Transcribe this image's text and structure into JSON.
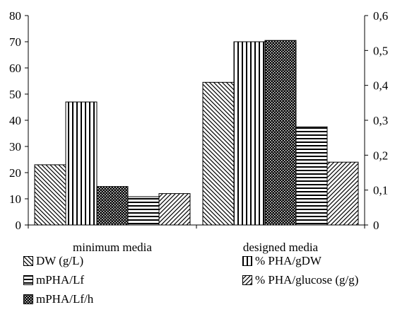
{
  "chart_data": {
    "type": "bar",
    "categories": [
      "minimum media",
      "designed media"
    ],
    "y_left": {
      "min": 0,
      "max": 80,
      "ticks": [
        0,
        10,
        20,
        30,
        40,
        50,
        60,
        70,
        80
      ]
    },
    "y_right": {
      "min": 0,
      "max": 0.6,
      "ticks": [
        "0",
        "0,1",
        "0,2",
        "0,3",
        "0,4",
        "0,5",
        "0,6"
      ]
    },
    "series": [
      {
        "name": "DW (g/L)",
        "axis": "left",
        "values": [
          23,
          54.5
        ],
        "pattern": "diag-back"
      },
      {
        "name": "% PHA/gDW",
        "axis": "left",
        "values": [
          47,
          70
        ],
        "pattern": "vertical"
      },
      {
        "name": "mPHA/Lf/h",
        "axis": "left",
        "values": [
          14.7,
          70.5
        ],
        "pattern": "checker"
      },
      {
        "name": "mPHA/Lf",
        "axis": "left",
        "values": [
          10.8,
          37.5
        ],
        "pattern": "horizontal"
      },
      {
        "name": "% PHA/glucose (g/g)",
        "axis": "left",
        "values": [
          12,
          24
        ],
        "pattern": "diag-fwd"
      }
    ],
    "legend": [
      {
        "name": "DW (g/L)",
        "pattern": "diag-back"
      },
      {
        "name": "% PHA/gDW",
        "pattern": "vertical"
      },
      {
        "name": "mPHA/Lf",
        "pattern": "horizontal"
      },
      {
        "name": "% PHA/glucose (g/g)",
        "pattern": "diag-fwd"
      },
      {
        "name": "mPHA/Lf/h",
        "pattern": "checker"
      }
    ],
    "grid": false,
    "legend_position": "bottom"
  }
}
